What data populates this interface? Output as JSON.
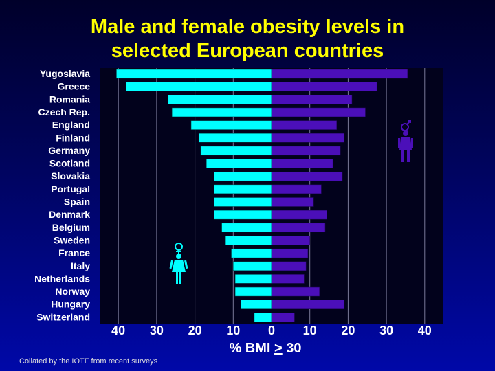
{
  "title_line1": "Male and female obesity levels in",
  "title_line2": "selected European countries",
  "footnote": "Collated by the IOTF from recent surveys",
  "xaxis": {
    "prefix": "% BMI ",
    "ge_symbol": ">",
    "suffix": " 30"
  },
  "chart_data": {
    "type": "bar",
    "orientation": "horizontal-butterfly",
    "title": "Male and female obesity levels in selected European countries",
    "xlabel": "% BMI > 30",
    "ylabel": "",
    "categories": [
      "Yugoslavia",
      "Greece",
      "Romania",
      "Czech Rep.",
      "England",
      "Finland",
      "Germany",
      "Scotland",
      "Slovakia",
      "Portugal",
      "Spain",
      "Denmark",
      "Belgium",
      "Sweden",
      "France",
      "Italy",
      "Netherlands",
      "Norway",
      "Hungary",
      "Switzerland"
    ],
    "series": [
      {
        "values": [
          40.5,
          38,
          27,
          26,
          21,
          19,
          18.5,
          17,
          15,
          15,
          15,
          15,
          13,
          12,
          10.5,
          10,
          9.5,
          9.5,
          8,
          4.5
        ],
        "color": "#00ffff",
        "side": "left"
      },
      {
        "values": [
          35.5,
          27.5,
          21,
          24.5,
          17,
          19,
          18,
          16,
          18.5,
          13,
          11,
          14.5,
          14,
          10,
          9.5,
          9,
          8.5,
          12.5,
          19,
          6
        ],
        "color": "#4b0fb9",
        "side": "right"
      }
    ],
    "xticks": [
      40,
      30,
      20,
      10,
      0,
      10,
      20,
      30,
      40
    ],
    "xlim": [
      -42,
      45
    ],
    "grid": true,
    "icons": [
      "female-figure-icon",
      "male-figure-icon"
    ]
  }
}
